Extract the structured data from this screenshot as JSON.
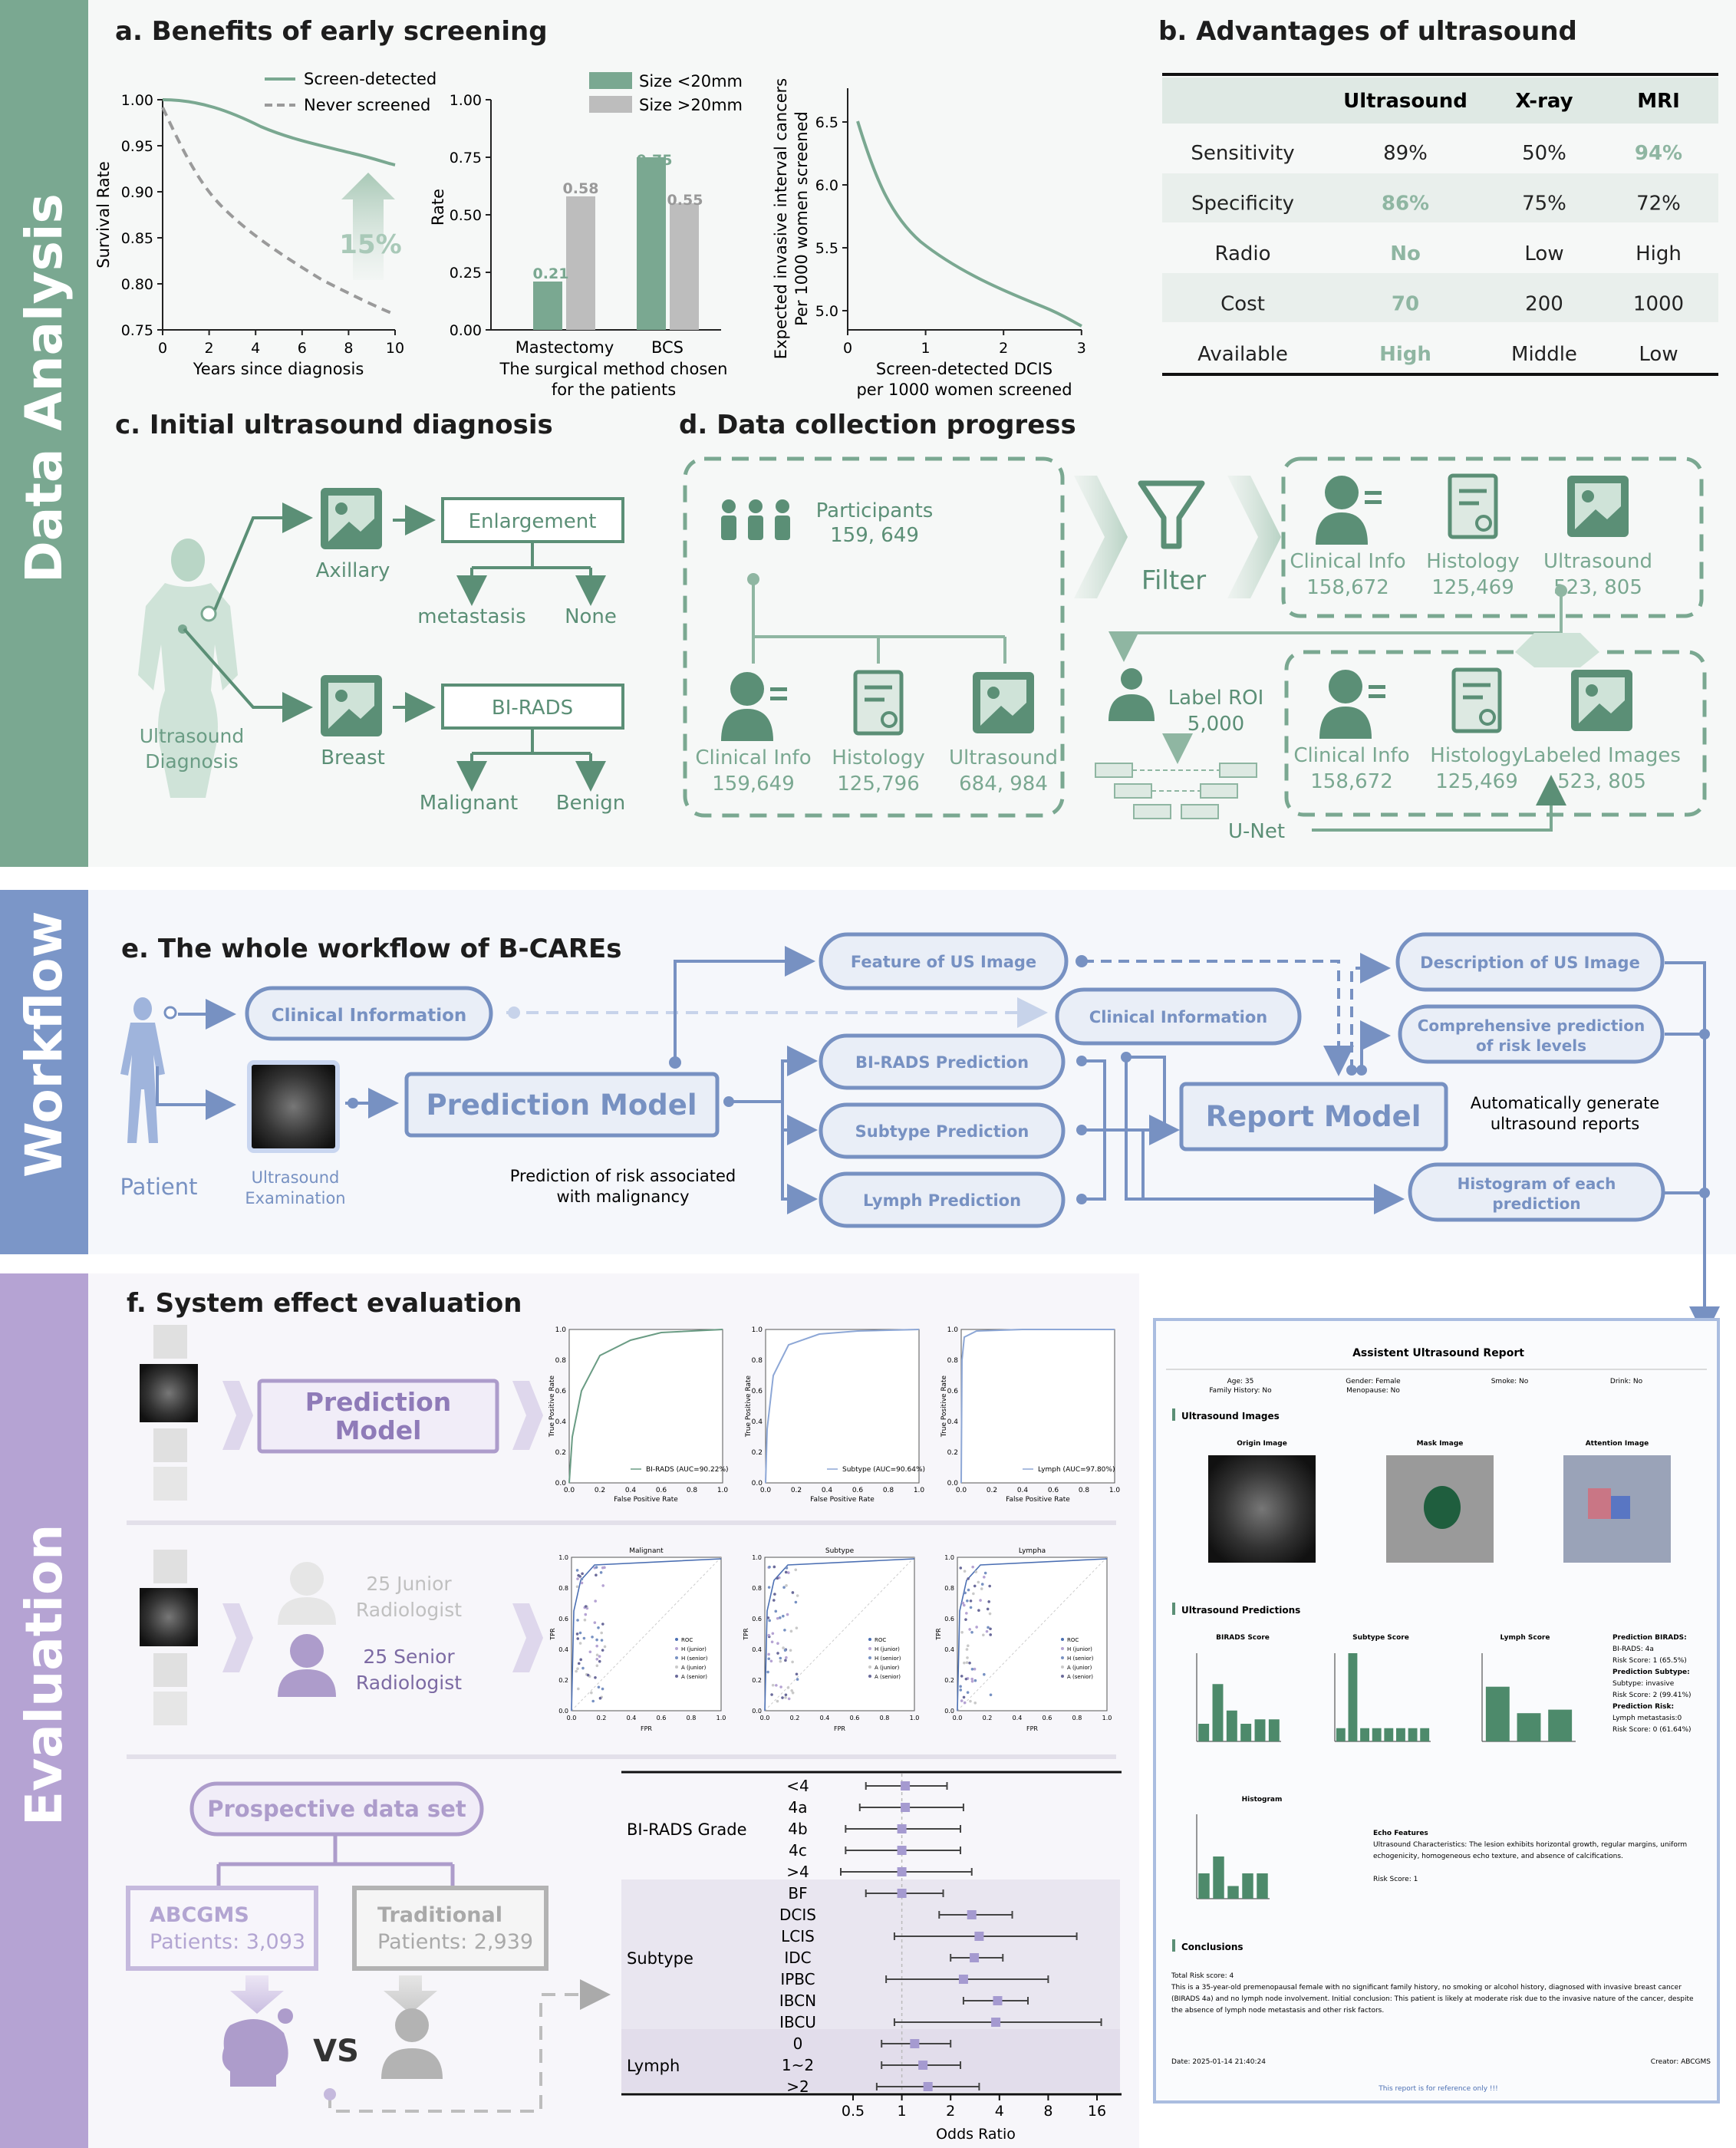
{
  "colors": {
    "green": "#7aa891",
    "greenDark": "#5b8f76",
    "greenLight": "#cfe0d6",
    "blue": "#7791c2",
    "blueBand": "#7b96c8",
    "blueLight": "#e9eef7",
    "purple": "#ad9ccb",
    "purpleDark": "#7c6aa3",
    "purpleBand": "#b5a3d3",
    "grayBar": "#bdbdbd"
  },
  "bands": {
    "analysis": "Data Analysis",
    "workflow": "Workflow",
    "evaluation": "Evaluation"
  },
  "a": {
    "title": "a. Benefits of early screening",
    "surv": {
      "ylabel": "Survival Rate",
      "xlabel": "Years since diagnosis",
      "legend1": "Screen-detected",
      "legend2": "Never screened",
      "pct": "15%",
      "yt": [
        "0.75",
        "0.80",
        "0.85",
        "0.90",
        "0.95",
        "1.00"
      ],
      "xt": [
        "0",
        "2",
        "4",
        "6",
        "8",
        "10"
      ]
    },
    "bar": {
      "ylabel": "Rate",
      "xlabel1": "The surgical method chosen",
      "xlabel2": "for the patients",
      "legend1": "Size <20mm",
      "legend2": "Size >20mm",
      "cats": [
        "Mastectomy",
        "BCS"
      ],
      "yt": [
        "0.00",
        "0.25",
        "0.50",
        "0.75",
        "1.00"
      ],
      "lab": [
        "0.21",
        "0.58",
        "0.75",
        "0.55"
      ]
    },
    "line": {
      "ylabel1": "Expected invasive interval cancers",
      "ylabel2": "Per 1000 women screened",
      "xlabel1": "Screen-detected DCIS",
      "xlabel2": "per 1000 women screened",
      "yt": [
        "5.0",
        "5.5",
        "6.0",
        "6.5"
      ],
      "xt": [
        "0",
        "1",
        "2",
        "3"
      ]
    }
  },
  "b": {
    "title": "b. Advantages of ultrasound",
    "head": [
      "",
      "Ultrasound",
      "X-ray",
      "MRI"
    ],
    "rows": [
      [
        "Sensitivity",
        "89%",
        "50%",
        "94%"
      ],
      [
        "Specificity",
        "86%",
        "75%",
        "72%"
      ],
      [
        "Radio",
        "No",
        "Low",
        "High"
      ],
      [
        "Cost",
        "70",
        "200",
        "1000"
      ],
      [
        "Available",
        "High",
        "Middle",
        "Low"
      ]
    ]
  },
  "c": {
    "title": "c. Initial ultrasound diagnosis",
    "diag1": "Ultrasound",
    "diag2": "Diagnosis",
    "axillary": "Axillary",
    "breast": "Breast",
    "enlarge": "Enlargement",
    "meta": "metastasis",
    "none": "None",
    "birads": "BI-RADS",
    "malig": "Malignant",
    "benign": "Benign"
  },
  "d": {
    "title": "d. Data collection progress",
    "part": "Participants",
    "partN": "159, 649",
    "filter": "Filter",
    "raw": [
      [
        "Clinical Info",
        "159,649"
      ],
      [
        "Histology",
        "125,796"
      ],
      [
        "Ultrasound",
        "684, 984"
      ]
    ],
    "filt": [
      [
        "Clinical Info",
        "158,672"
      ],
      [
        "Histology",
        "125,469"
      ],
      [
        "Ultrasound",
        "523, 805"
      ]
    ],
    "lab": [
      [
        "Clinical Info",
        "158,672"
      ],
      [
        "Histology",
        "125,469"
      ],
      [
        "Labeled Images",
        "523, 805"
      ]
    ],
    "roi": "Label ROI",
    "roiN": "5,000",
    "unet": "U-Net"
  },
  "e": {
    "title": "e. The whole workflow of B-CAREs",
    "patient": "Patient",
    "usx1": "Ultrasound",
    "usx2": "Examination",
    "clin": "Clinical Information",
    "pred": "Prediction Model",
    "predNote1": "Prediction of risk associated",
    "predNote2": "with malignancy",
    "feat": "Feature of US Image",
    "clin2": "Clinical Information",
    "bir": "BI-RADS Prediction",
    "sub": "Subtype Prediction",
    "lym": "Lymph Prediction",
    "report": "Report Model",
    "desc": "Description of US Image",
    "comp1": "Comprehensive prediction",
    "comp2": "of risk levels",
    "hist1": "Histogram of each",
    "hist2": "prediction",
    "auto1": "Automatically generate",
    "auto2": "ultrasound reports"
  },
  "f": {
    "title": "f. System effect evaluation",
    "pm1": "Prediction",
    "pm2": "Model",
    "roc": [
      {
        "leg": "BI-RADS (AUC=90.22%)"
      },
      {
        "leg": "Subtype (AUC=90.64%)"
      },
      {
        "leg": "Lymph (AUC=97.80%)"
      }
    ],
    "rocAx": {
      "y": "True Positive Rate",
      "x": "False Positive Rate",
      "t": [
        "0.0",
        "0.2",
        "0.4",
        "0.6",
        "0.8",
        "1.0"
      ]
    },
    "jun1": "25 Junior",
    "jun2": "Radiologist",
    "sen1": "25 Senior",
    "sen2": "Radiologist",
    "cmp": [
      {
        "t": "Malignant"
      },
      {
        "t": "Subtype"
      },
      {
        "t": "Lympha"
      }
    ],
    "cmpAx": {
      "y": "TPR",
      "x": "FPR",
      "leg": [
        "ROC",
        "H (junior)",
        "H (senior)",
        "A (junior)",
        "A (senior)"
      ]
    },
    "pros": "Prospective data set",
    "ab1": "ABCGMS",
    "ab2": "Patients: 3,093",
    "tr1": "Traditional",
    "tr2": "Patients: 2,939",
    "vs": "VS",
    "forest": {
      "xlabel": "Odds Ratio",
      "xt": [
        "0.5",
        "1",
        "2",
        "4",
        "8",
        "16"
      ],
      "groups": [
        {
          "name": "BI-RADS Grade",
          "items": [
            {
              "l": "<4",
              "or": 1.05,
              "lo": 0.6,
              "hi": 1.9
            },
            {
              "l": "4a",
              "or": 1.05,
              "lo": 0.55,
              "hi": 2.4
            },
            {
              "l": "4b",
              "or": 1.0,
              "lo": 0.45,
              "hi": 2.3
            },
            {
              "l": "4c",
              "or": 1.0,
              "lo": 0.45,
              "hi": 2.3
            },
            {
              "l": ">4",
              "or": 1.0,
              "lo": 0.42,
              "hi": 2.7
            }
          ]
        },
        {
          "name": "Subtype",
          "items": [
            {
              "l": "BF",
              "or": 1.0,
              "lo": 0.6,
              "hi": 1.8
            },
            {
              "l": "DCIS",
              "or": 2.7,
              "lo": 1.7,
              "hi": 4.8
            },
            {
              "l": "LCIS",
              "or": 3.0,
              "lo": 0.9,
              "hi": 12.0
            },
            {
              "l": "IDC",
              "or": 2.8,
              "lo": 2.0,
              "hi": 4.2
            },
            {
              "l": "IPBC",
              "or": 2.4,
              "lo": 0.8,
              "hi": 8.0
            },
            {
              "l": "IBCN",
              "or": 3.9,
              "lo": 2.4,
              "hi": 6.0
            },
            {
              "l": "IBCU",
              "or": 3.8,
              "lo": 0.9,
              "hi": 17.0
            }
          ]
        },
        {
          "name": "Lymph",
          "items": [
            {
              "l": "0",
              "or": 1.2,
              "lo": 0.75,
              "hi": 2.0
            },
            {
              "l": "1~2",
              "or": 1.35,
              "lo": 0.75,
              "hi": 2.3
            },
            {
              "l": ">2",
              "or": 1.45,
              "lo": 0.7,
              "hi": 3.0
            }
          ]
        }
      ]
    }
  },
  "r": {
    "title": "Assistent Ultrasound Report",
    "age": "Age: 35",
    "fam": "Family History: No",
    "gender": "Gender: Female",
    "meno": "Menopause: No",
    "smoke": "Smoke: No",
    "drink": "Drink: No",
    "imgs": "Ultrasound Images",
    "orig": "Origin Image",
    "mask": "Mask Image",
    "att": "Attention Image",
    "preds": "Ultrasound Predictions",
    "bs": "BIRADS Score",
    "ss": "Subtype Score",
    "ls": "Lymph Score",
    "pb": "Prediction BIRADS:",
    "pb1": "BI-RADS: 4a",
    "pb2": "Risk Score: 1 (65.5%)",
    "ps": "Prediction Subtype:",
    "ps1": "Subtype: invasive",
    "ps2": "Risk Score: 2 (99.41%)",
    "pr": "Prediction Risk:",
    "pr1": "Lymph metastasis:0",
    "pr2": "Risk Score: 0 (61.64%)",
    "hist": "Histogram",
    "echo": "Echo Features",
    "echoT1": "Ultrasound Characteristics: The lesion exhibits horizontal growth, regular margins, uniform",
    "echoT2": "echogenicity, homogeneous echo texture, and absence of calcifications.",
    "rs": "Risk Score: 1",
    "conc": "Conclusions",
    "tot": "Total Risk score: 4",
    "c1": "This is a 35-year-old premenopausal female with no significant family history, no smoking or alcohol history, diagnosed with invasive breast cancer",
    "c2": "(BIRADS 4a) and no lymph node involvement. Initial conclusion: This patient is likely at moderate risk due to the invasive nature of the cancer, despite",
    "c3": "the absence of lymph node metastasis and other risk factors.",
    "date": "Date: 2025-01-14 21:40:24",
    "creator": "Creator: ABCGMS",
    "foot": "This report is for reference only !!!",
    "birVals": [
      0.2,
      0.65,
      0.35,
      0.2,
      0.25,
      0.25
    ],
    "subVals": [
      0.15,
      1.0,
      0.15,
      0.15,
      0.15,
      0.15,
      0.15,
      0.15
    ],
    "lymVals": [
      0.62,
      0.32,
      0.36
    ],
    "histVals": [
      0.3,
      0.5,
      0.15,
      0.3,
      0.3
    ]
  }
}
